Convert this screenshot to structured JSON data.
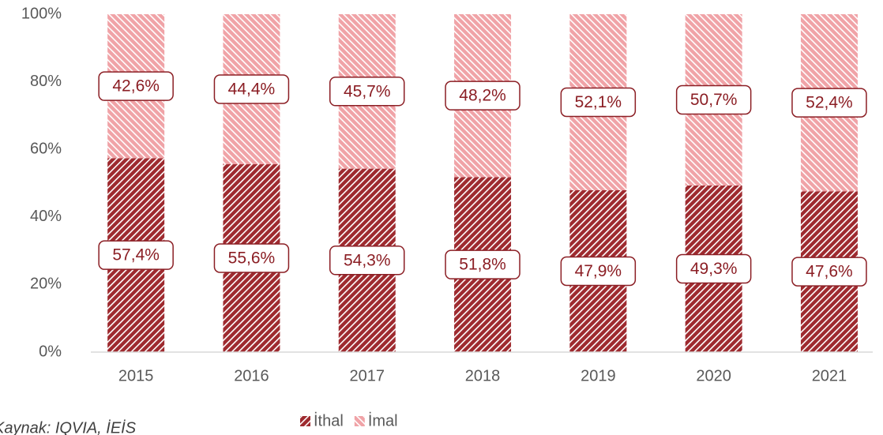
{
  "chart_data": {
    "type": "stacked_bar",
    "categories": [
      "2015",
      "2016",
      "2017",
      "2018",
      "2019",
      "2020",
      "2021"
    ],
    "series": [
      {
        "name": "İthal",
        "color": "#9e2a2f",
        "values": [
          57.4,
          55.6,
          54.3,
          51.8,
          47.9,
          49.3,
          47.6
        ],
        "value_labels": [
          "57,4%",
          "55,6%",
          "54,3%",
          "51,8%",
          "47,9%",
          "49,3%",
          "47,6%"
        ]
      },
      {
        "name": "İmal",
        "color": "#f0a3a7",
        "values": [
          42.6,
          44.4,
          45.7,
          48.2,
          52.1,
          50.7,
          52.4
        ],
        "value_labels": [
          "42,6%",
          "44,4%",
          "45,7%",
          "48,2%",
          "52,1%",
          "50,7%",
          "52,4%"
        ]
      }
    ],
    "ylim": [
      0,
      100
    ],
    "yticks": [
      {
        "value": 0,
        "label": "0%"
      },
      {
        "value": 20,
        "label": "20%"
      },
      {
        "value": 40,
        "label": "40%"
      },
      {
        "value": 60,
        "label": "60%"
      },
      {
        "value": 80,
        "label": "80%"
      },
      {
        "value": 100,
        "label": "100%"
      }
    ],
    "legend": "bottom",
    "source": "Kaynak: IQVIA, İEİS"
  }
}
